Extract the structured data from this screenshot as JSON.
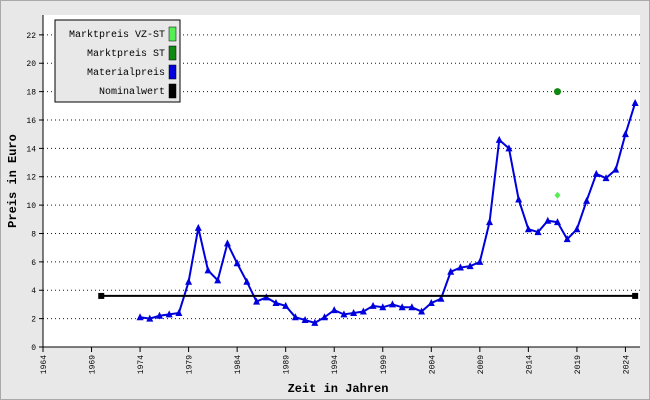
{
  "chart_data": {
    "type": "line",
    "xlabel": "Zeit in Jahren",
    "ylabel": "Preis in Euro",
    "xlim": [
      1964,
      2025.5
    ],
    "ylim": [
      0,
      23.4
    ],
    "xticks": [
      1964,
      1969,
      1974,
      1979,
      1984,
      1989,
      1994,
      1999,
      2004,
      2009,
      2014,
      2019,
      2024
    ],
    "yticks": [
      0,
      2,
      4,
      6,
      8,
      10,
      12,
      14,
      16,
      18,
      20,
      22
    ],
    "grid": true,
    "legend": "upper left",
    "series": [
      {
        "name": "Marktpreis VZ-ST",
        "color": "#55ee55",
        "marker": "diamond",
        "x": [
          2017
        ],
        "values": [
          10.7
        ]
      },
      {
        "name": "Marktpreis ST",
        "color": "#118811",
        "marker": "circle",
        "x": [
          2017
        ],
        "values": [
          18.0
        ]
      },
      {
        "name": "Materialpreis",
        "color": "#0000dd",
        "marker": "triangle",
        "x": [
          1974,
          1975,
          1976,
          1977,
          1978,
          1979,
          1980,
          1981,
          1982,
          1983,
          1984,
          1985,
          1986,
          1987,
          1988,
          1989,
          1990,
          1991,
          1992,
          1993,
          1994,
          1995,
          1996,
          1997,
          1998,
          1999,
          2000,
          2001,
          2002,
          2003,
          2004,
          2005,
          2006,
          2007,
          2008,
          2009,
          2010,
          2011,
          2012,
          2013,
          2014,
          2015,
          2016,
          2017,
          2018,
          2019,
          2020,
          2021,
          2022,
          2023,
          2024,
          2025
        ],
        "values": [
          2.1,
          2.0,
          2.2,
          2.3,
          2.4,
          4.6,
          8.4,
          5.4,
          4.7,
          7.3,
          5.9,
          4.6,
          3.2,
          3.5,
          3.1,
          2.9,
          2.1,
          1.9,
          1.7,
          2.1,
          2.6,
          2.3,
          2.4,
          2.5,
          2.9,
          2.8,
          3.0,
          2.8,
          2.8,
          2.5,
          3.1,
          3.4,
          5.3,
          5.6,
          5.7,
          6.0,
          8.8,
          14.6,
          14.0,
          10.4,
          8.3,
          8.1,
          8.9,
          8.8,
          7.6,
          8.3,
          10.3,
          12.2,
          11.9,
          12.5,
          15.0,
          17.2
        ]
      },
      {
        "name": "Nominalwert",
        "color": "#000000",
        "marker": "square",
        "x": [
          1970,
          2025
        ],
        "values": [
          3.6,
          3.6
        ]
      }
    ]
  }
}
